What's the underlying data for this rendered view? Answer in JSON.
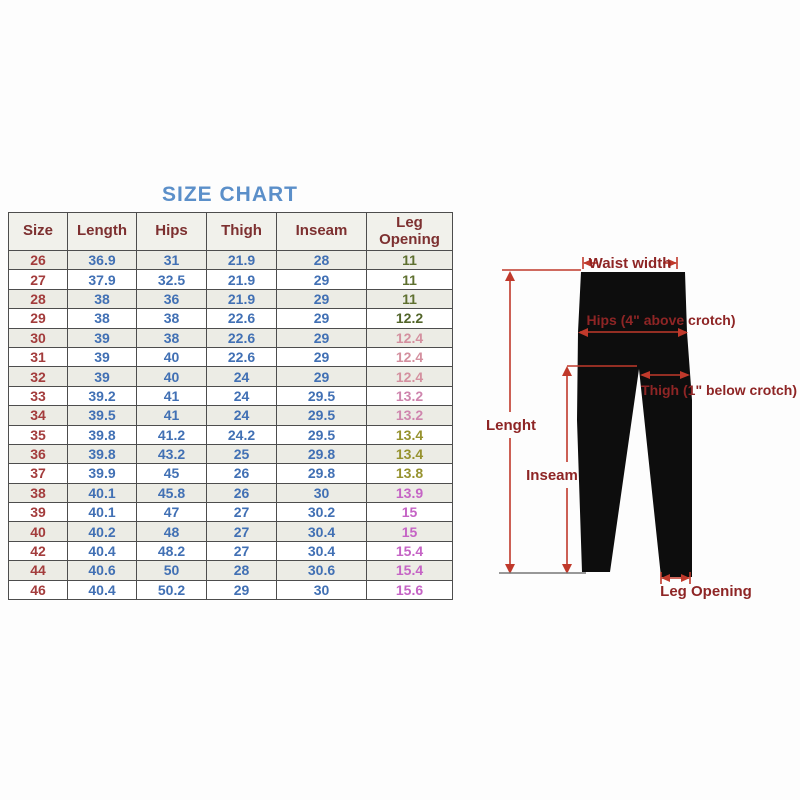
{
  "title": "SIZE CHART",
  "table": {
    "headers": [
      "Size",
      "Length",
      "Hips",
      "Thigh",
      "Inseam",
      "Leg Opening"
    ],
    "rows": [
      {
        "size": "26",
        "length": "36.9",
        "hips": "31",
        "thigh": "21.9",
        "inseam": "28",
        "leg_opening": "11",
        "leg_color": "#5f7030"
      },
      {
        "size": "27",
        "length": "37.9",
        "hips": "32.5",
        "thigh": "21.9",
        "inseam": "29",
        "leg_opening": "11",
        "leg_color": "#5f7030"
      },
      {
        "size": "28",
        "length": "38",
        "hips": "36",
        "thigh": "21.9",
        "inseam": "29",
        "leg_opening": "11",
        "leg_color": "#5f7030"
      },
      {
        "size": "29",
        "length": "38",
        "hips": "38",
        "thigh": "22.6",
        "inseam": "29",
        "leg_opening": "12.2",
        "leg_color": "#52652a"
      },
      {
        "size": "30",
        "length": "39",
        "hips": "38",
        "thigh": "22.6",
        "inseam": "29",
        "leg_opening": "12.4",
        "leg_color": "#d4909f"
      },
      {
        "size": "31",
        "length": "39",
        "hips": "40",
        "thigh": "22.6",
        "inseam": "29",
        "leg_opening": "12.4",
        "leg_color": "#d4909f"
      },
      {
        "size": "32",
        "length": "39",
        "hips": "40",
        "thigh": "24",
        "inseam": "29",
        "leg_opening": "12.4",
        "leg_color": "#d4909f"
      },
      {
        "size": "33",
        "length": "39.2",
        "hips": "41",
        "thigh": "24",
        "inseam": "29.5",
        "leg_opening": "13.2",
        "leg_color": "#cf86ae"
      },
      {
        "size": "34",
        "length": "39.5",
        "hips": "41",
        "thigh": "24",
        "inseam": "29.5",
        "leg_opening": "13.2",
        "leg_color": "#cf86ae"
      },
      {
        "size": "35",
        "length": "39.8",
        "hips": "41.2",
        "thigh": "24.2",
        "inseam": "29.5",
        "leg_opening": "13.4",
        "leg_color": "#96922e"
      },
      {
        "size": "36",
        "length": "39.8",
        "hips": "43.2",
        "thigh": "25",
        "inseam": "29.8",
        "leg_opening": "13.4",
        "leg_color": "#96922e"
      },
      {
        "size": "37",
        "length": "39.9",
        "hips": "45",
        "thigh": "26",
        "inseam": "29.8",
        "leg_opening": "13.8",
        "leg_color": "#96922e"
      },
      {
        "size": "38",
        "length": "40.1",
        "hips": "45.8",
        "thigh": "26",
        "inseam": "30",
        "leg_opening": "13.9",
        "leg_color": "#c564c5"
      },
      {
        "size": "39",
        "length": "40.1",
        "hips": "47",
        "thigh": "27",
        "inseam": "30.2",
        "leg_opening": "15",
        "leg_color": "#c564c5"
      },
      {
        "size": "40",
        "length": "40.2",
        "hips": "48",
        "thigh": "27",
        "inseam": "30.4",
        "leg_opening": "15",
        "leg_color": "#c564c5"
      },
      {
        "size": "42",
        "length": "40.4",
        "hips": "48.2",
        "thigh": "27",
        "inseam": "30.4",
        "leg_opening": "15.4",
        "leg_color": "#c564c5"
      },
      {
        "size": "44",
        "length": "40.6",
        "hips": "50",
        "thigh": "28",
        "inseam": "30.6",
        "leg_opening": "15.4",
        "leg_color": "#c564c5"
      },
      {
        "size": "46",
        "length": "40.4",
        "hips": "50.2",
        "thigh": "29",
        "inseam": "30",
        "leg_opening": "15.6",
        "leg_color": "#c564c5"
      }
    ]
  },
  "diagram": {
    "labels": {
      "waist": "Waist width",
      "hips": "Hips (4\" above crotch)",
      "thigh": "Thigh (1\" below crotch)",
      "length": "Lenght",
      "inseam": "Inseam",
      "leg_opening": "Leg Opening"
    }
  },
  "colors": {
    "title": "#5b8fc9",
    "header_text": "#7d3030",
    "size_text": "#a33c3c",
    "value_text": "#4170b4",
    "leg_green": "#5f7030",
    "leg_pink": "#d4909f",
    "leg_olive": "#96922e",
    "leg_magenta": "#c564c5",
    "diagram_label": "#8e2525",
    "arrow": "#c0392b",
    "pants": "#0d0d0d"
  },
  "chart_data": {
    "type": "table",
    "title": "SIZE CHART",
    "columns": [
      "Size",
      "Length",
      "Hips",
      "Thigh",
      "Inseam",
      "Leg Opening"
    ],
    "rows": [
      [
        26,
        36.9,
        31,
        21.9,
        28,
        11
      ],
      [
        27,
        37.9,
        32.5,
        21.9,
        29,
        11
      ],
      [
        28,
        38,
        36,
        21.9,
        29,
        11
      ],
      [
        29,
        38,
        38,
        22.6,
        29,
        12.2
      ],
      [
        30,
        39,
        38,
        22.6,
        29,
        12.4
      ],
      [
        31,
        39,
        40,
        22.6,
        29,
        12.4
      ],
      [
        32,
        39,
        40,
        24,
        29,
        12.4
      ],
      [
        33,
        39.2,
        41,
        24,
        29.5,
        13.2
      ],
      [
        34,
        39.5,
        41,
        24,
        29.5,
        13.2
      ],
      [
        35,
        39.8,
        41.2,
        24.2,
        29.5,
        13.4
      ],
      [
        36,
        39.8,
        43.2,
        25,
        29.8,
        13.4
      ],
      [
        37,
        39.9,
        45,
        26,
        29.8,
        13.8
      ],
      [
        38,
        40.1,
        45.8,
        26,
        30,
        13.9
      ],
      [
        39,
        40.1,
        47,
        27,
        30.2,
        15
      ],
      [
        40,
        40.2,
        48,
        27,
        30.4,
        15
      ],
      [
        42,
        40.4,
        48.2,
        27,
        30.4,
        15.4
      ],
      [
        44,
        40.6,
        50,
        28,
        30.6,
        15.4
      ],
      [
        46,
        40.4,
        50.2,
        29,
        30,
        15.6
      ]
    ]
  }
}
